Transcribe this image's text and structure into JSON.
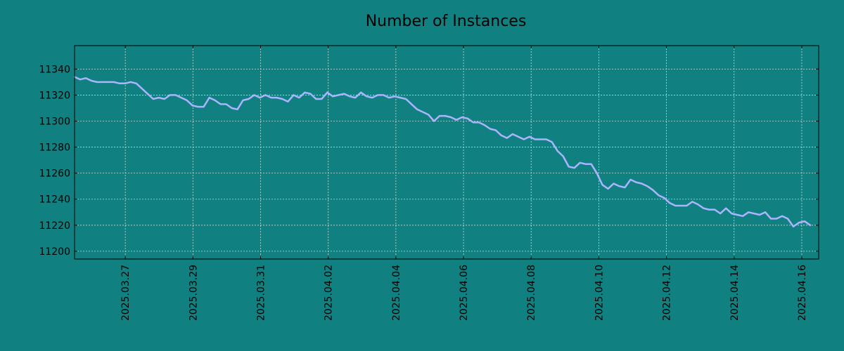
{
  "chart_data": {
    "type": "line",
    "title": "Number of Instances",
    "xlabel": "",
    "ylabel": "",
    "x_start": "2025.03.25 12:00",
    "x_end": "2025.04.16 06:00",
    "xlim": [
      "2025.03.25 12:00",
      "2025.04.16 12:00"
    ],
    "ylim": [
      11194,
      11358
    ],
    "y_ticks": [
      11200,
      11220,
      11240,
      11260,
      11280,
      11300,
      11320,
      11340
    ],
    "x_ticks": [
      "2025.03.27",
      "2025.03.29",
      "2025.03.31",
      "2025.04.02",
      "2025.04.04",
      "2025.04.06",
      "2025.04.08",
      "2025.04.10",
      "2025.04.12",
      "2025.04.14",
      "2025.04.16"
    ],
    "grid": true,
    "series": [
      {
        "values": [
          11334,
          11332,
          11333,
          11331,
          11330,
          11330,
          11330,
          11330,
          11329,
          11329,
          11330,
          11329,
          11325,
          11321,
          11317,
          11318,
          11317,
          11320,
          11320,
          11318,
          11316,
          11312,
          11311,
          11311,
          11318,
          11316,
          11313,
          11313,
          11310,
          11309,
          11316,
          11317,
          11320,
          11318,
          11320,
          11318,
          11318,
          11317,
          11315,
          11320,
          11318,
          11322,
          11321,
          11317,
          11317,
          11322,
          11319,
          11320,
          11321,
          11319,
          11318,
          11322,
          11319,
          11318,
          11320,
          11320,
          11318,
          11319,
          11318,
          11317,
          11313,
          11309,
          11307,
          11305,
          11300,
          11304,
          11304,
          11303,
          11301,
          11303,
          11302,
          11299,
          11299,
          11297,
          11294,
          11293,
          11289,
          11287,
          11290,
          11288,
          11286,
          11288,
          11286,
          11286,
          11286,
          11284,
          11277,
          11273,
          11265,
          11264,
          11268,
          11267,
          11267,
          11260,
          11251,
          11248,
          11252,
          11250,
          11249,
          11255,
          11253,
          11252,
          11250,
          11247,
          11243,
          11241,
          11237,
          11235,
          11235,
          11235,
          11238,
          11236,
          11233,
          11232,
          11232,
          11229,
          11233,
          11229,
          11228,
          11227,
          11230,
          11229,
          11228,
          11230,
          11225,
          11225,
          11227,
          11225,
          11219,
          11222,
          11223,
          11220
        ]
      }
    ]
  },
  "colors": {
    "background": "#108080",
    "line": "#aab4ff",
    "grid": "#c8d8d8",
    "axes": "#000000"
  }
}
